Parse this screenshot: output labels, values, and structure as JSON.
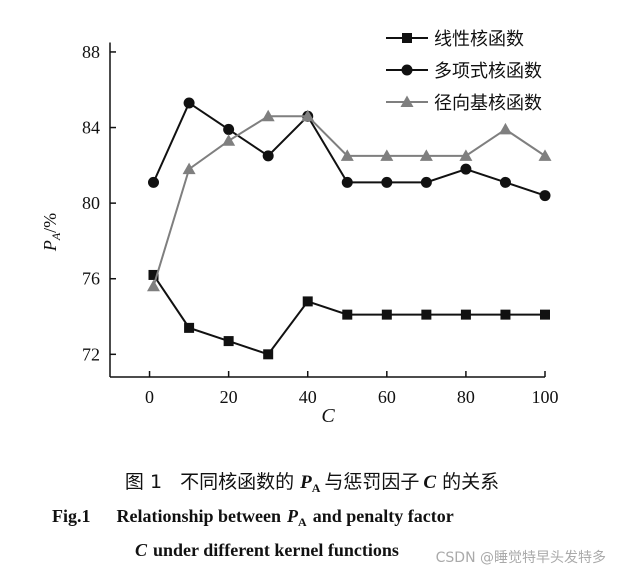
{
  "chart_data": {
    "type": "line",
    "x_label": "C",
    "y_label": [
      "P",
      "A",
      "/%"
    ],
    "x": [
      1,
      10,
      20,
      30,
      40,
      50,
      60,
      70,
      80,
      90,
      100
    ],
    "series": [
      {
        "name": "线性核函数",
        "color": "#111111",
        "marker": "square",
        "values": [
          76.2,
          73.4,
          72.7,
          72.0,
          74.8,
          74.1,
          74.1,
          74.1,
          74.1,
          74.1,
          74.1
        ]
      },
      {
        "name": "多项式核函数",
        "color": "#111111",
        "marker": "circle",
        "values": [
          81.1,
          85.3,
          83.9,
          82.5,
          84.6,
          81.1,
          81.1,
          81.1,
          81.8,
          81.1,
          80.4
        ]
      },
      {
        "name": "径向基核函数",
        "color": "#7f7f7f",
        "marker": "triangle",
        "values": [
          75.6,
          81.8,
          83.3,
          84.6,
          84.6,
          82.5,
          82.5,
          82.5,
          82.5,
          83.9,
          82.5
        ]
      }
    ],
    "xlim": [
      -10,
      100
    ],
    "xticks": [
      0,
      20,
      40,
      60,
      80,
      100
    ],
    "ylim": [
      70.8,
      88.5
    ],
    "yticks": [
      72,
      76,
      80,
      84,
      88
    ],
    "legend": "upper-right",
    "caption_cn": [
      "图 1",
      "不同核函数的",
      "P",
      "A",
      "与惩罚因子",
      "C",
      "的关系"
    ],
    "caption_en_1": [
      "Fig.1",
      "Relationship between",
      "P",
      "A",
      "and penalty factor"
    ],
    "caption_en_2": [
      "C",
      "under different kernel functions"
    ],
    "watermark": "CSDN @睡觉特早头发特多"
  }
}
